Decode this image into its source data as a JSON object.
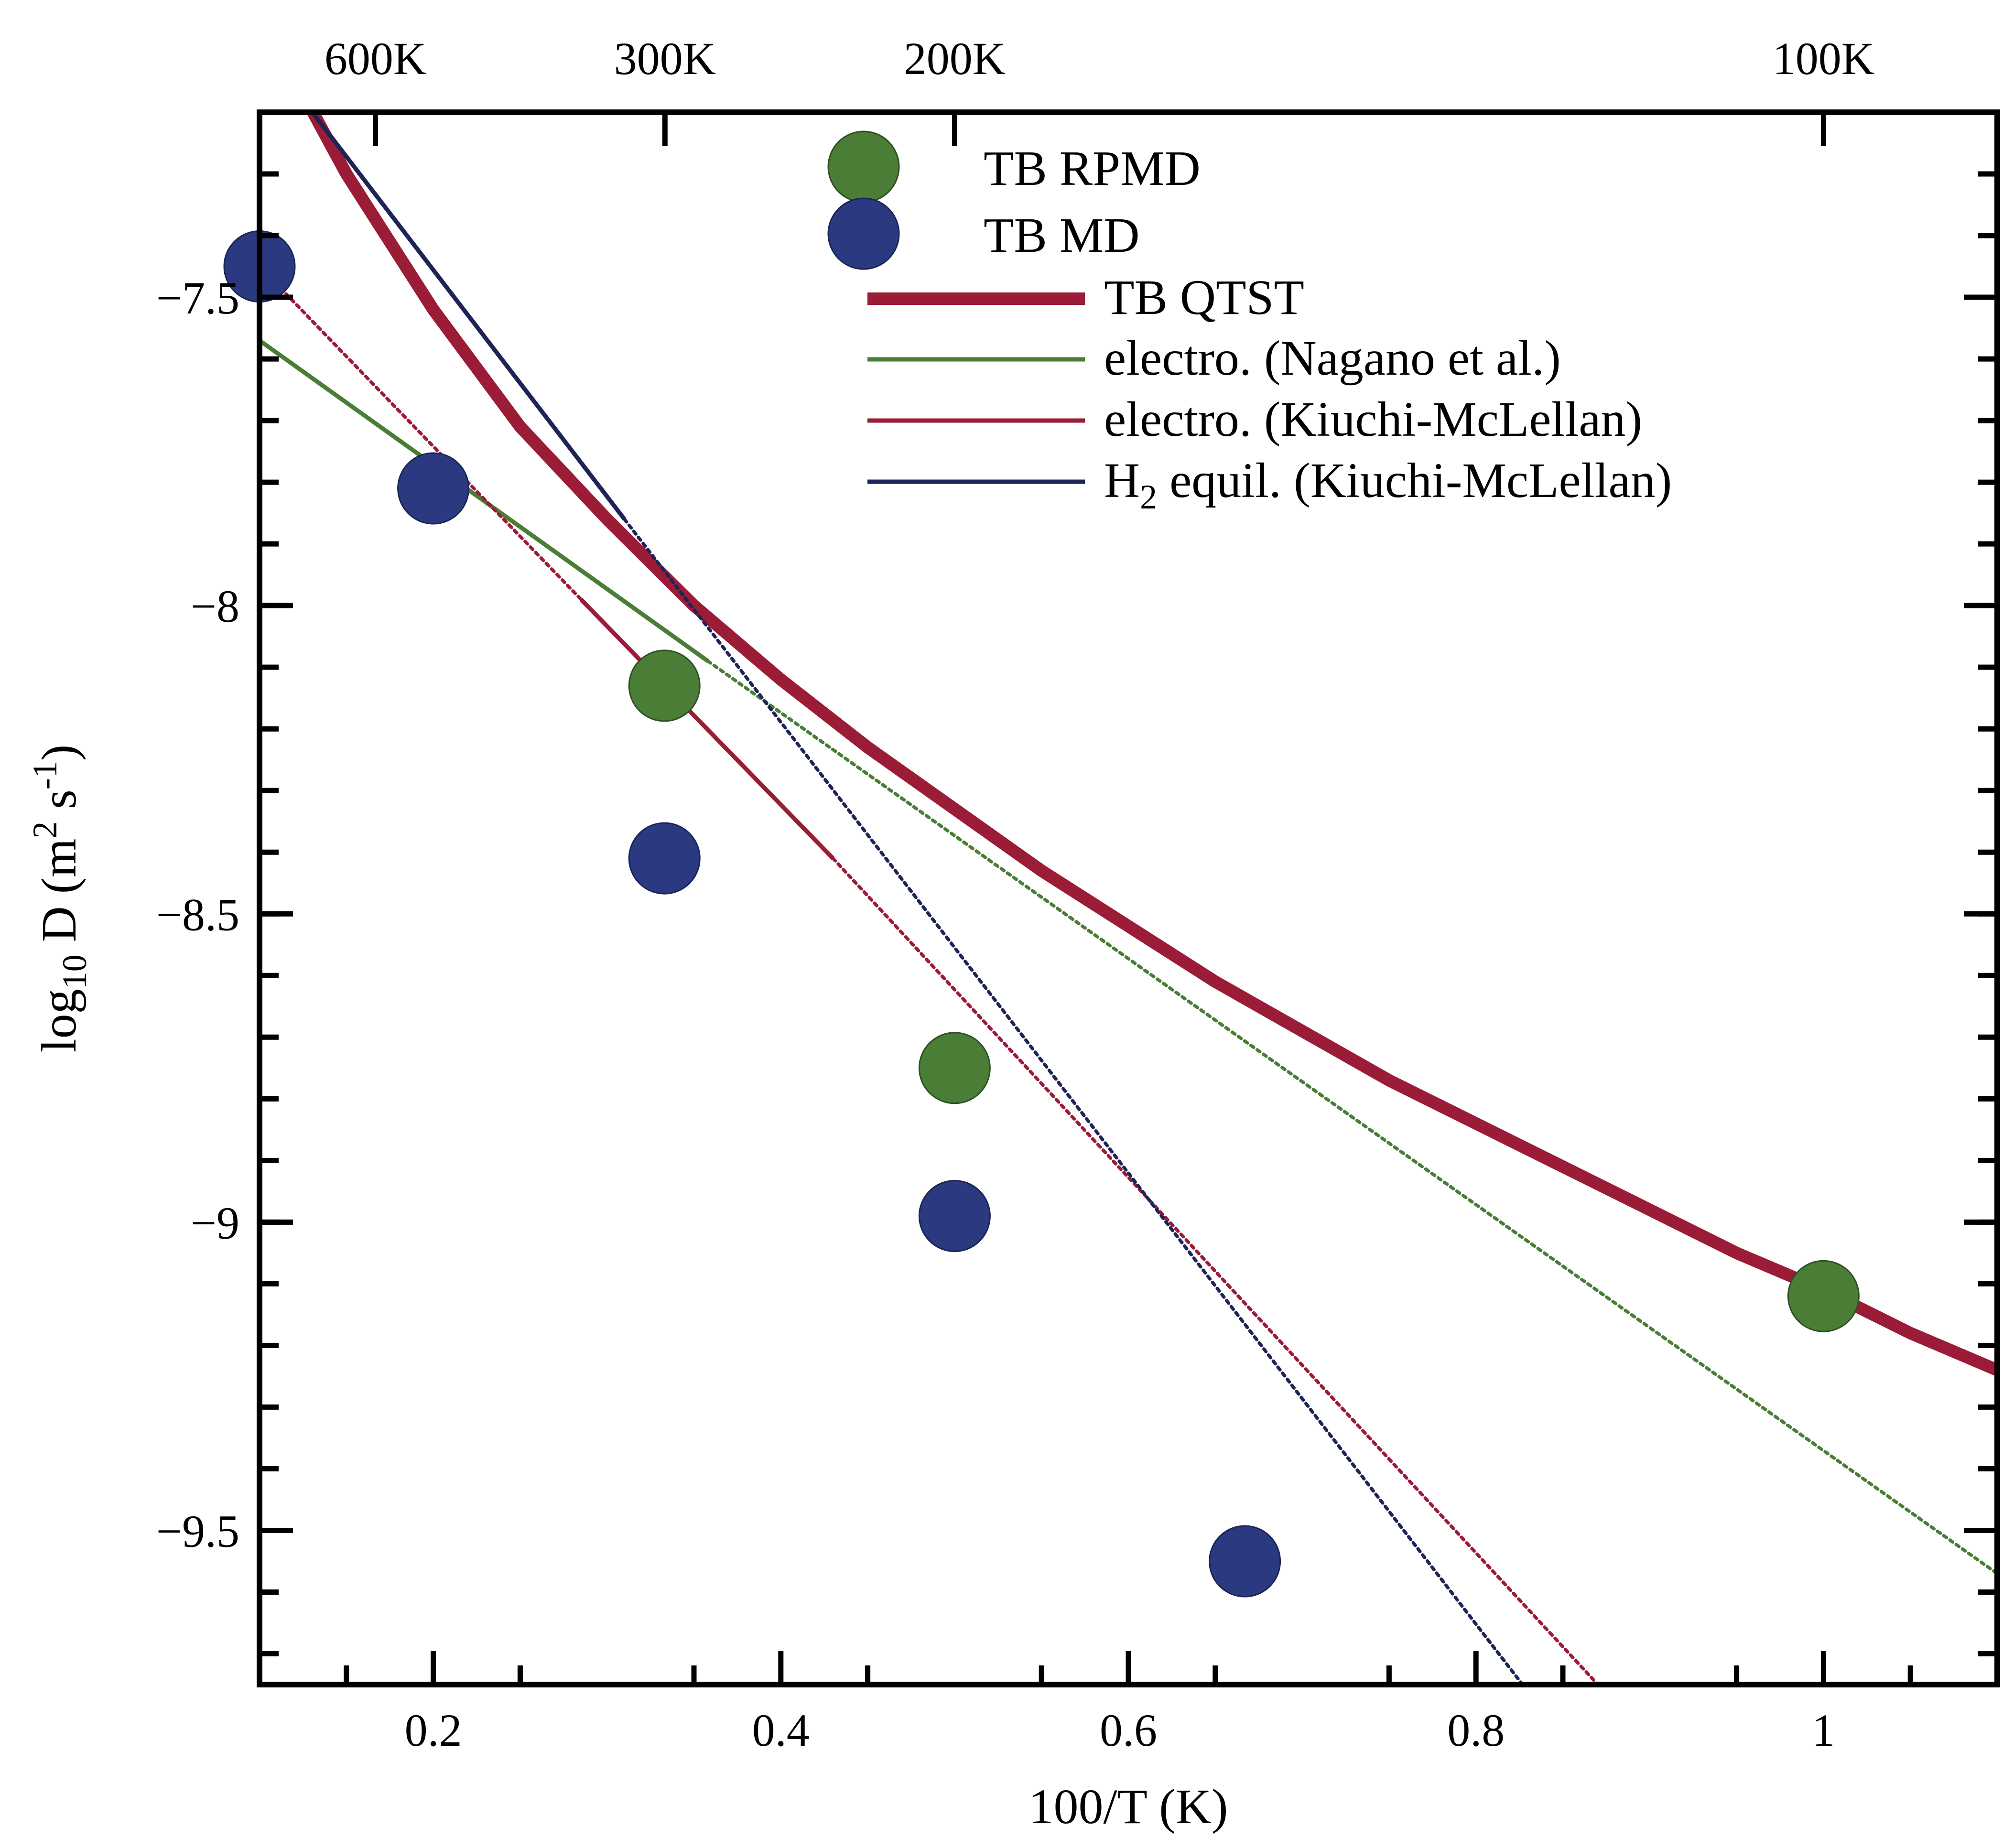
{
  "chart_data": {
    "type": "scatter",
    "title": "",
    "xlabel": "100/T (K)",
    "ylabel": {
      "main": "log",
      "sub": "10",
      "rest": " D (m",
      "sup1": "2",
      "mid": " s",
      "sup2": "-1",
      "end": ")"
    },
    "xlim": [
      0.1,
      1.1
    ],
    "ylim": [
      -9.75,
      -7.2
    ],
    "grid": false,
    "legend_position": "top-center",
    "x_ticks": [
      0.2,
      0.4,
      0.6,
      0.8,
      1.0
    ],
    "x_tick_labels": [
      "0.2",
      "0.4",
      "0.6",
      "0.8",
      "1"
    ],
    "y_ticks": [
      -7.5,
      -8,
      -8.5,
      -9,
      -9.5
    ],
    "y_tick_labels": [
      "−7.5",
      "−8",
      "−8.5",
      "−9",
      "−9.5"
    ],
    "top_axis": {
      "ticks": [
        0.1667,
        0.3333,
        0.5,
        1.0
      ],
      "labels": [
        "600K",
        "300K",
        "200K",
        "100K"
      ]
    },
    "series": [
      {
        "name": "TB RPMD",
        "kind": "points",
        "color": "#4a7d36",
        "points": [
          [
            0.333,
            -8.13
          ],
          [
            0.5,
            -8.75
          ],
          [
            1.0,
            -9.12
          ]
        ]
      },
      {
        "name": "TB MD",
        "kind": "points",
        "color": "#2b3a80",
        "points": [
          [
            0.1,
            -7.45
          ],
          [
            0.2,
            -7.81
          ],
          [
            0.333,
            -8.41
          ],
          [
            0.5,
            -8.99
          ],
          [
            0.667,
            -9.55
          ]
        ]
      },
      {
        "name": "TB QTST",
        "kind": "curve",
        "color": "#9b1c37",
        "points": [
          [
            0.125,
            -7.17
          ],
          [
            0.15,
            -7.3
          ],
          [
            0.2,
            -7.52
          ],
          [
            0.25,
            -7.71
          ],
          [
            0.3,
            -7.86
          ],
          [
            0.35,
            -8.0
          ],
          [
            0.4,
            -8.12
          ],
          [
            0.45,
            -8.23
          ],
          [
            0.5,
            -8.33
          ],
          [
            0.55,
            -8.43
          ],
          [
            0.6,
            -8.52
          ],
          [
            0.65,
            -8.61
          ],
          [
            0.7,
            -8.69
          ],
          [
            0.75,
            -8.77
          ],
          [
            0.8,
            -8.84
          ],
          [
            0.85,
            -8.91
          ],
          [
            0.9,
            -8.98
          ],
          [
            0.95,
            -9.05
          ],
          [
            1.0,
            -9.11
          ],
          [
            1.05,
            -9.18
          ],
          [
            1.1,
            -9.24
          ]
        ]
      },
      {
        "name": "electro. (Nagano et al.)",
        "kind": "line",
        "color": "#4a7d36",
        "solid": [
          [
            0.1,
            -7.57
          ],
          [
            0.358,
            -8.09
          ]
        ],
        "dotted": [
          [
            0.358,
            -8.09
          ],
          [
            1.1,
            -9.57
          ]
        ]
      },
      {
        "name": "electro. (Kiuchi-McLellan)",
        "kind": "line",
        "color": "#9b1c37",
        "solid": [
          [
            0.285,
            -7.99
          ],
          [
            0.43,
            -8.41
          ]
        ],
        "dotted_segments": [
          [
            [
              0.1,
              -7.45
            ],
            [
              0.285,
              -7.99
            ]
          ],
          [
            [
              0.43,
              -8.41
            ],
            [
              0.88,
              -9.78
            ]
          ]
        ]
      },
      {
        "name": "H2 equil. (Kiuchi-McLellan)",
        "kind": "line",
        "color": "#1e2556",
        "legend_label": {
          "a": "H",
          "sub": "2",
          "b": " equil. (Kiuchi-McLellan)"
        },
        "solid": [
          [
            0.125,
            -7.18
          ],
          [
            0.31,
            -7.86
          ]
        ],
        "dotted": [
          [
            0.31,
            -7.86
          ],
          [
            0.835,
            -9.78
          ]
        ]
      }
    ]
  }
}
